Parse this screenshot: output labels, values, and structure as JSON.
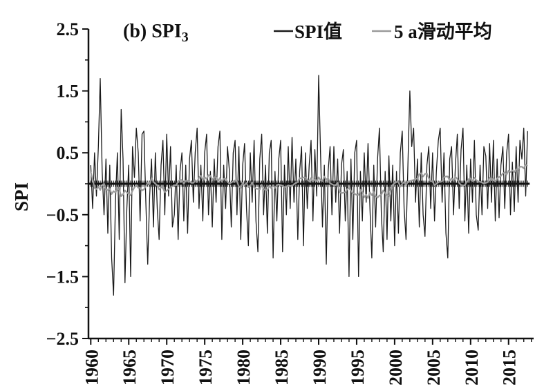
{
  "figure": {
    "title_prefix": "(b) SPI",
    "title_sub": "3",
    "y_axis_label": "SPI",
    "legend": [
      {
        "label": "SPI值",
        "color": "#1a1a1a"
      },
      {
        "label": "5 a滑动平均",
        "color": "#9a9a9a"
      }
    ]
  },
  "chart_data": {
    "type": "line",
    "title": "(b) SPI3",
    "xlabel": "",
    "ylabel": "SPI",
    "xlim": [
      1959.7,
      2018.3
    ],
    "ylim": [
      -2.5,
      2.5
    ],
    "grid": false,
    "legend_position": "top",
    "x_ticks_major": [
      1960,
      1965,
      1970,
      1975,
      1980,
      1985,
      1990,
      1995,
      2000,
      2005,
      2010,
      2015
    ],
    "x_ticks_minor_step": 1,
    "y_ticks_major": [
      2.5,
      1.5,
      0.5,
      -0.5,
      -1.5,
      -2.5
    ],
    "y_tick_labels": [
      "2.5",
      "1.5",
      "0.5",
      "−0.5",
      "−1.5",
      "−2.5"
    ],
    "y_ticks_minor": [
      2.0,
      1.0,
      0,
      -1.0,
      -2.0
    ],
    "zero_line": true,
    "series": [
      {
        "name": "SPI值",
        "color": "#1a1a1a",
        "x_start": 1960,
        "x_step": 0.25,
        "values": [
          0.3,
          -0.4,
          0.5,
          -0.2,
          0.6,
          1.7,
          0.2,
          -0.5,
          0.4,
          -0.8,
          0.3,
          -1.2,
          -1.8,
          -0.3,
          0.5,
          -0.9,
          1.2,
          0.4,
          -1.6,
          -0.4,
          0.3,
          -1.5,
          0.6,
          0.1,
          0.9,
          0.5,
          -0.6,
          0.8,
          0.85,
          -0.3,
          -1.3,
          -0.2,
          0.4,
          -0.7,
          0.5,
          -0.4,
          -0.9,
          0.3,
          0.7,
          -0.5,
          0.8,
          -0.2,
          0.6,
          -0.7,
          -0.5,
          0.3,
          -0.9,
          0.2,
          0.5,
          -0.6,
          0.3,
          -0.8,
          0.4,
          0.7,
          -0.3,
          0.5,
          0.9,
          -0.4,
          0.3,
          -0.6,
          0.5,
          0.8,
          -0.5,
          0.2,
          -0.7,
          0.4,
          -0.3,
          0.6,
          0.85,
          -0.9,
          0.3,
          -0.4,
          0.6,
          0.2,
          -0.7,
          0.5,
          0.7,
          -0.5,
          0.6,
          -0.9,
          0.3,
          0.65,
          -0.4,
          -1.0,
          0.5,
          -0.3,
          0.7,
          -0.6,
          -1.1,
          0.4,
          0.8,
          -0.5,
          0.3,
          -0.8,
          0.5,
          0.7,
          -1.2,
          0.2,
          -0.6,
          0.4,
          0.7,
          -1.1,
          0.3,
          -0.5,
          0.6,
          -0.4,
          0.75,
          -0.3,
          0.4,
          -0.9,
          0.2,
          0.6,
          -1.0,
          0.5,
          -0.4,
          0.3,
          0.7,
          -0.6,
          0.55,
          -0.2,
          1.75,
          0.5,
          -0.7,
          0.3,
          -1.3,
          0.2,
          0.6,
          -0.5,
          0.6,
          -0.3,
          0.4,
          -0.8,
          0.3,
          0.55,
          -0.6,
          0.2,
          -1.5,
          0.4,
          -0.9,
          0.5,
          0.7,
          -1.5,
          0.2,
          -0.6,
          0.5,
          -0.3,
          0.65,
          -0.4,
          -1.2,
          0.3,
          -0.7,
          0.4,
          0.9,
          -0.5,
          -1.1,
          0.2,
          -0.9,
          0.45,
          -0.6,
          0.3,
          -1.0,
          0.2,
          -0.8,
          0.5,
          0.85,
          -0.4,
          -0.9,
          0.3,
          1.5,
          0.6,
          0.9,
          -0.3,
          0.4,
          -0.7,
          0.5,
          -0.5,
          -0.85,
          0.3,
          0.6,
          -0.4,
          0.5,
          -0.6,
          0.2,
          0.7,
          0.9,
          -0.3,
          0.5,
          -0.8,
          -1.2,
          0.4,
          0.6,
          -0.5,
          0.3,
          0.8,
          -0.4,
          0.55,
          0.9,
          -0.6,
          0.3,
          -0.8,
          0.4,
          -0.3,
          0.7,
          -0.5,
          -0.75,
          0.3,
          -0.5,
          0.6,
          0.45,
          -0.4,
          0.65,
          -0.3,
          0.7,
          -0.6,
          0.4,
          -0.55,
          0.3,
          0.6,
          -0.4,
          0.5,
          0.8,
          -0.5,
          0.35,
          -0.45,
          0.6,
          -0.3,
          0.7,
          0.4,
          0.9,
          -0.2,
          0.85
        ]
      },
      {
        "name": "5 a滑动平均",
        "color": "#9a9a9a",
        "derived": "5-year centered moving average of SPI值"
      }
    ]
  }
}
